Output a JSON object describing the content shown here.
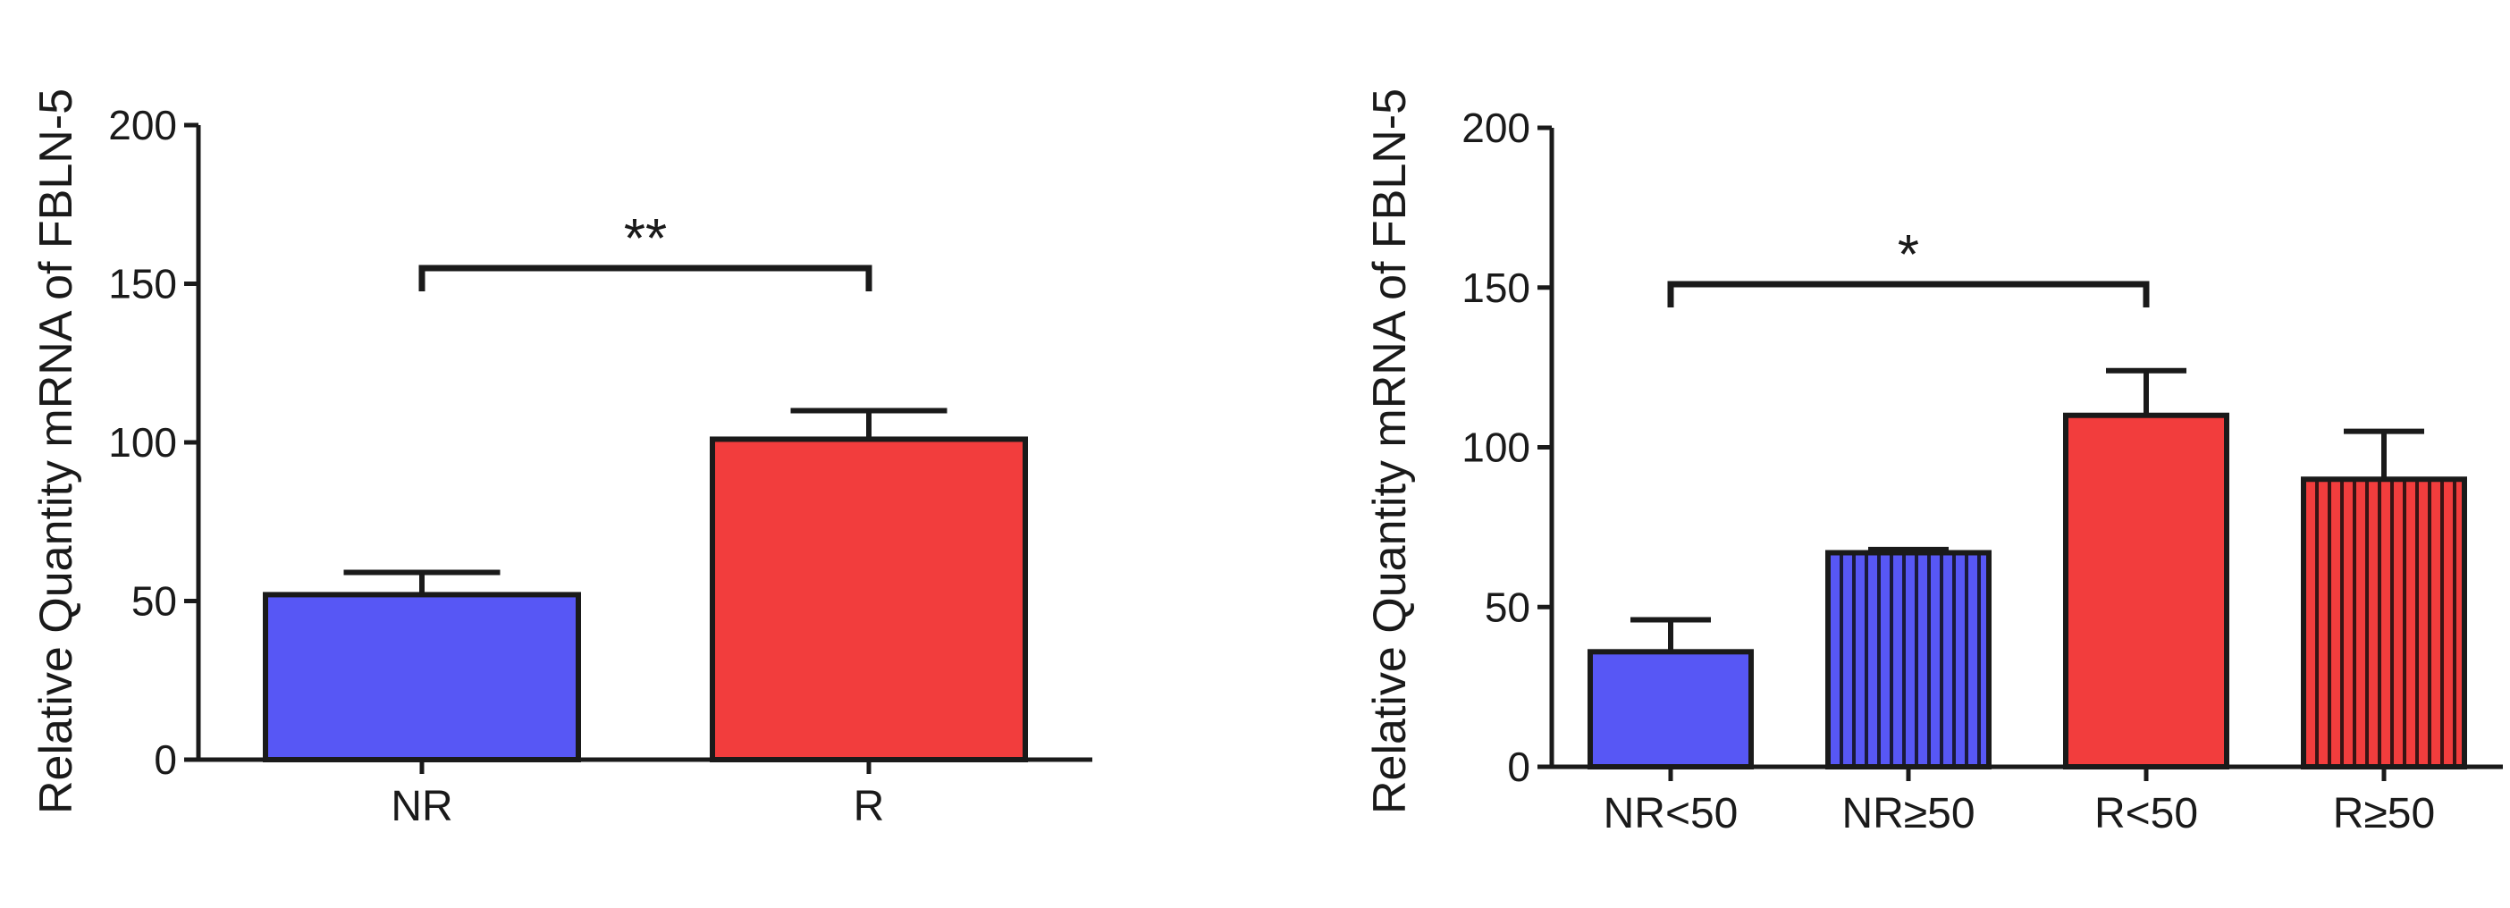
{
  "chart_data": [
    {
      "type": "bar",
      "title": "",
      "xlabel": "",
      "ylabel": "Relative Quantity mRNA of FBLN-5",
      "ylim": [
        0,
        200
      ],
      "yticks": [
        0,
        50,
        100,
        150,
        200
      ],
      "grid": false,
      "categories": [
        "NR",
        "R"
      ],
      "values": [
        52,
        101
      ],
      "errors": [
        7,
        9
      ],
      "colors": [
        "#5757f5",
        "#f23d3d"
      ],
      "patterns": [
        "solid",
        "solid"
      ],
      "significance": [
        {
          "from": "NR",
          "to": "R",
          "label": "**"
        }
      ]
    },
    {
      "type": "bar",
      "title": "",
      "xlabel": "",
      "ylabel": "Relative Quantity mRNA of FBLN-5",
      "ylim": [
        0,
        200
      ],
      "yticks": [
        0,
        50,
        100,
        150,
        200
      ],
      "grid": false,
      "categories": [
        "NR<50",
        "NR≥50",
        "R<50",
        "R≥50"
      ],
      "values": [
        36,
        67,
        110,
        90
      ],
      "errors": [
        10,
        1,
        14,
        15
      ],
      "colors": [
        "#5757f5",
        "#5757f5",
        "#f23d3d",
        "#f23d3d"
      ],
      "patterns": [
        "solid",
        "vertical-stripes",
        "solid",
        "vertical-stripes"
      ],
      "significance": [
        {
          "from": "NR<50",
          "to": "R<50",
          "label": "*"
        }
      ]
    }
  ]
}
